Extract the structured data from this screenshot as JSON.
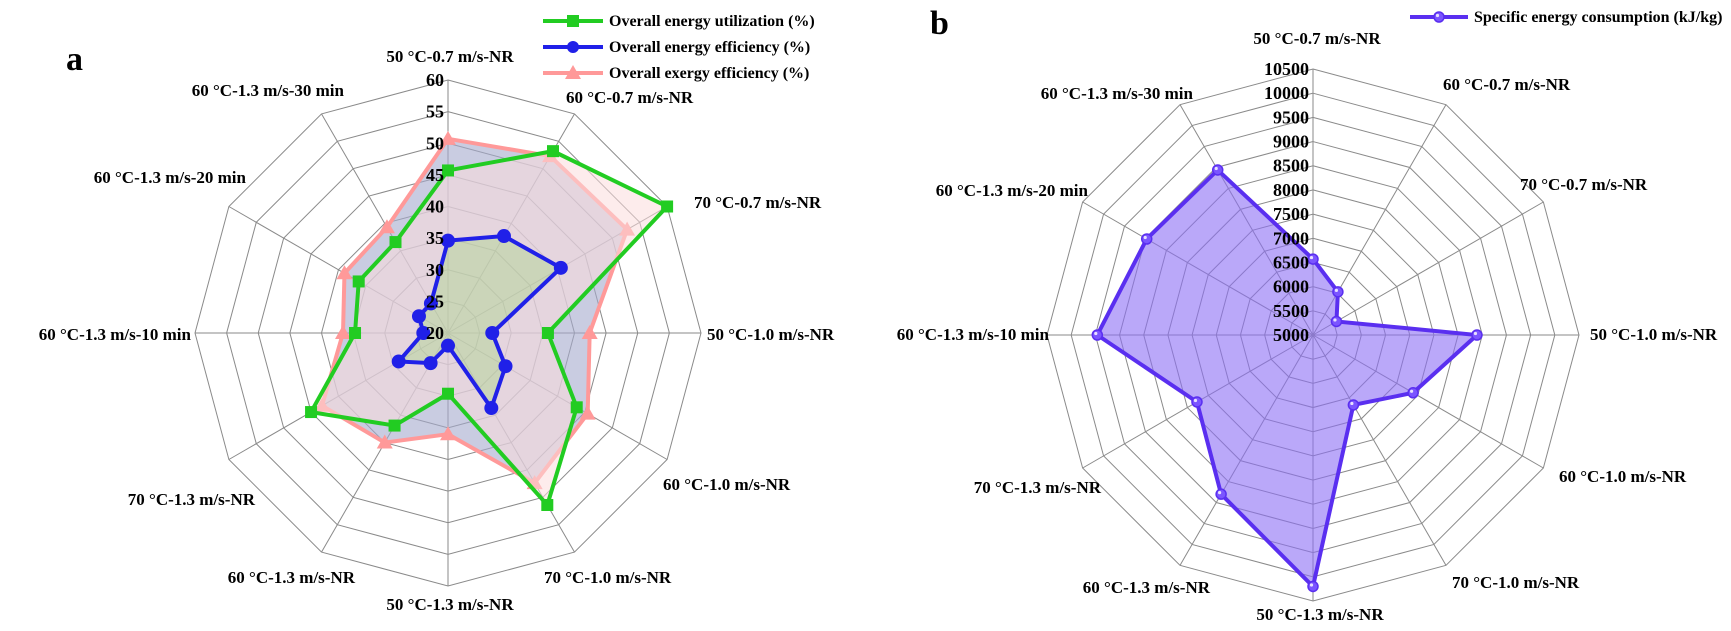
{
  "chart_data": [
    {
      "type": "radar",
      "panel_label": "a",
      "categories": [
        "50 °C-0.7 m/s-NR",
        "60 °C-0.7 m/s-NR",
        "70 °C-0.7 m/s-NR",
        "50 °C-1.0 m/s-NR",
        "60 °C-1.0 m/s-NR",
        "70 °C-1.0 m/s-NR",
        "50 °C-1.3 m/s-NR",
        "60 °C-1.3 m/s-NR",
        "70 °C-1.3 m/s-NR",
        "60 °C-1.3 m/s-10 min",
        "60 °C-1.3 m/s-20 min",
        "60 °C-1.3 m/s-30 min"
      ],
      "rlim": [
        20,
        60
      ],
      "ticks": [
        "20",
        "25",
        "30",
        "35",
        "40",
        "45",
        "50",
        "55",
        "60"
      ],
      "legend_position": "top-right",
      "series": [
        {
          "name": "Overall energy utilization (%)",
          "color": "#22cc22",
          "marker": "square",
          "values": [
            45.7,
            53.2,
            60,
            35.8,
            43.5,
            51.4,
            29.6,
            36.9,
            45.0,
            34.7,
            36.3,
            36.6
          ]
        },
        {
          "name": "Overall energy efficiency (%)",
          "color": "#2020e8",
          "marker": "circle",
          "values": [
            34.6,
            37.7,
            40.6,
            27.0,
            30.5,
            33.7,
            22.0,
            25.5,
            29.0,
            23.9,
            25.3,
            25.4
          ]
        },
        {
          "name": "Overall exergy efficiency (%)",
          "color": "#ff9999",
          "marker": "triangle",
          "values": [
            50.7,
            52.3,
            52.7,
            42.4,
            45.5,
            47.4,
            36.0,
            40.0,
            43.0,
            36.6,
            38.9,
            39.3
          ]
        }
      ]
    },
    {
      "type": "radar",
      "panel_label": "b",
      "categories": [
        "50 °C-0.7 m/s-NR",
        "60 °C-0.7 m/s-NR",
        "70 °C-0.7 m/s-NR",
        "50 °C-1.0 m/s-NR",
        "60 °C-1.0 m/s-NR",
        "70 °C-1.0 m/s-NR",
        "50 °C-1.3 m/s-NR",
        "60 °C-1.3 m/s-NR",
        "70 °C-1.3 m/s-NR",
        "60 °C-1.3 m/s-10 min",
        "60 °C-1.3 m/s-20 min",
        "60 °C-1.3 m/s-30 min"
      ],
      "rlim": [
        5000,
        10500
      ],
      "ticks": [
        "5000",
        "5500",
        "6000",
        "6500",
        "7000",
        "7500",
        "8000",
        "8500",
        "9000",
        "9500",
        "10000",
        "10500"
      ],
      "legend_position": "top-right",
      "series": [
        {
          "name": "Specific energy consumption (kJ/kg)",
          "color": "#5a2ff0",
          "marker": "circle",
          "values": [
            6570,
            6030,
            5560,
            8390,
            7390,
            6670,
            10200,
            8800,
            7770,
            9460,
            8970,
            8940
          ]
        }
      ]
    }
  ]
}
